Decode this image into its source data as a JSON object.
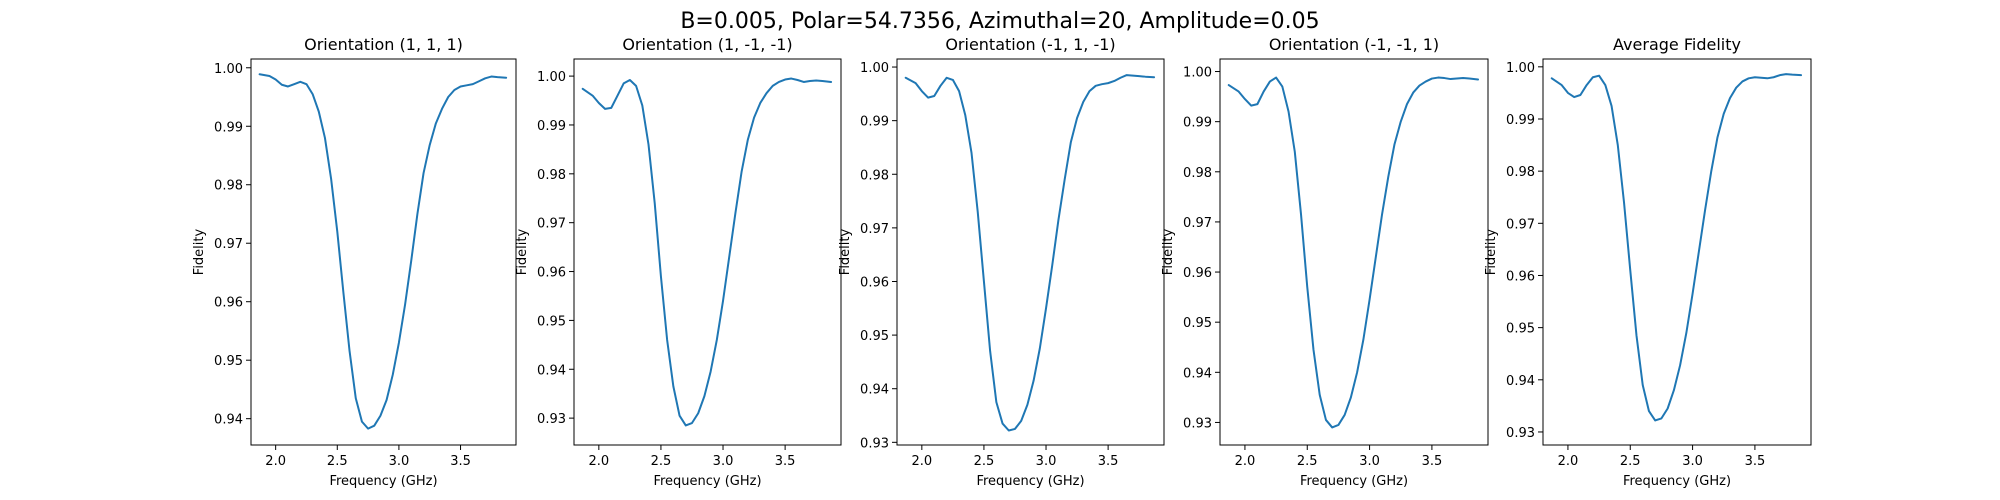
{
  "figure": {
    "suptitle": "B=0.005, Polar=54.7356, Azimuthal=20, Amplitude=0.05"
  },
  "chart_data": [
    {
      "type": "line",
      "title": "Orientation (1, 1, 1)",
      "xlabel": "Frequency (GHz)",
      "ylabel": "Fidelity",
      "xlim": [
        1.8,
        3.95
      ],
      "ylim": [
        0.9355,
        1.0015
      ],
      "xticks": [
        "2.0",
        "2.5",
        "3.0",
        "3.5"
      ],
      "yticks": [
        "0.94",
        "0.95",
        "0.96",
        "0.97",
        "0.98",
        "0.99",
        "1.00"
      ],
      "grid": false,
      "color": "#1f77b4",
      "series": [
        {
          "x": [
            1.87,
            1.95,
            2.0,
            2.05,
            2.1,
            2.15,
            2.2,
            2.25,
            2.3,
            2.35,
            2.4,
            2.45,
            2.5,
            2.55,
            2.6,
            2.65,
            2.7,
            2.75,
            2.8,
            2.85,
            2.9,
            2.95,
            3.0,
            3.05,
            3.1,
            3.15,
            3.2,
            3.25,
            3.3,
            3.35,
            3.4,
            3.45,
            3.5,
            3.55,
            3.6,
            3.65,
            3.7,
            3.75,
            3.8,
            3.87
          ],
          "values": [
            0.9989,
            0.9986,
            0.998,
            0.9971,
            0.9968,
            0.9972,
            0.9976,
            0.9972,
            0.9955,
            0.9925,
            0.988,
            0.981,
            0.972,
            0.9615,
            0.9515,
            0.9435,
            0.9395,
            0.9383,
            0.9388,
            0.9405,
            0.9432,
            0.9475,
            0.953,
            0.9595,
            0.967,
            0.975,
            0.982,
            0.9868,
            0.9905,
            0.993,
            0.995,
            0.9962,
            0.9968,
            0.997,
            0.9972,
            0.9977,
            0.9982,
            0.9985,
            0.9984,
            0.9983
          ]
        }
      ]
    },
    {
      "type": "line",
      "title": "Orientation (1, -1, -1)",
      "xlabel": "Frequency (GHz)",
      "ylabel": "Fidelity",
      "xlim": [
        1.8,
        3.95
      ],
      "ylim": [
        0.9245,
        1.0035
      ],
      "xticks": [
        "2.0",
        "2.5",
        "3.0",
        "3.5"
      ],
      "yticks": [
        "0.93",
        "0.94",
        "0.95",
        "0.96",
        "0.97",
        "0.98",
        "0.99",
        "1.00"
      ],
      "grid": false,
      "color": "#1f77b4",
      "series": [
        {
          "x": [
            1.87,
            1.95,
            2.0,
            2.05,
            2.1,
            2.15,
            2.2,
            2.25,
            2.3,
            2.35,
            2.4,
            2.45,
            2.5,
            2.55,
            2.6,
            2.65,
            2.7,
            2.75,
            2.8,
            2.85,
            2.9,
            2.95,
            3.0,
            3.05,
            3.1,
            3.15,
            3.2,
            3.25,
            3.3,
            3.35,
            3.4,
            3.45,
            3.5,
            3.55,
            3.6,
            3.65,
            3.7,
            3.75,
            3.8,
            3.87
          ],
          "values": [
            0.9974,
            0.996,
            0.9945,
            0.9933,
            0.9935,
            0.996,
            0.9985,
            0.9992,
            0.998,
            0.994,
            0.986,
            0.974,
            0.959,
            0.946,
            0.9365,
            0.9305,
            0.9285,
            0.929,
            0.931,
            0.9345,
            0.9395,
            0.946,
            0.954,
            0.963,
            0.972,
            0.9805,
            0.987,
            0.9915,
            0.9945,
            0.9965,
            0.998,
            0.9988,
            0.9993,
            0.9995,
            0.9992,
            0.9988,
            0.999,
            0.9991,
            0.999,
            0.9988
          ]
        }
      ]
    },
    {
      "type": "line",
      "title": "Orientation (-1, 1, -1)",
      "xlabel": "Frequency (GHz)",
      "ylabel": "Fidelity",
      "xlim": [
        1.8,
        3.95
      ],
      "ylim": [
        0.9295,
        1.0015
      ],
      "xticks": [
        "2.0",
        "2.5",
        "3.0",
        "3.5"
      ],
      "yticks": [
        "0.93",
        "0.94",
        "0.95",
        "0.96",
        "0.97",
        "0.98",
        "0.99",
        "1.00"
      ],
      "grid": false,
      "color": "#1f77b4",
      "series": [
        {
          "x": [
            1.87,
            1.95,
            2.0,
            2.05,
            2.1,
            2.15,
            2.2,
            2.25,
            2.3,
            2.35,
            2.4,
            2.45,
            2.5,
            2.55,
            2.6,
            2.65,
            2.7,
            2.75,
            2.8,
            2.85,
            2.9,
            2.95,
            3.0,
            3.05,
            3.1,
            3.15,
            3.2,
            3.25,
            3.3,
            3.35,
            3.4,
            3.45,
            3.5,
            3.55,
            3.6,
            3.65,
            3.7,
            3.75,
            3.8,
            3.87
          ],
          "values": [
            0.998,
            0.997,
            0.9955,
            0.9943,
            0.9946,
            0.9965,
            0.998,
            0.9976,
            0.9955,
            0.991,
            0.984,
            0.973,
            0.96,
            0.947,
            0.9375,
            0.9335,
            0.9322,
            0.9325,
            0.934,
            0.937,
            0.9415,
            0.9475,
            0.955,
            0.963,
            0.9715,
            0.979,
            0.986,
            0.9905,
            0.9935,
            0.9955,
            0.9965,
            0.9968,
            0.997,
            0.9974,
            0.998,
            0.9985,
            0.9984,
            0.9983,
            0.9982,
            0.9981
          ]
        }
      ]
    },
    {
      "type": "line",
      "title": "Orientation (-1, -1, 1)",
      "xlabel": "Frequency (GHz)",
      "ylabel": "Fidelity",
      "xlim": [
        1.8,
        3.95
      ],
      "ylim": [
        0.9255,
        1.0025
      ],
      "xticks": [
        "2.0",
        "2.5",
        "3.0",
        "3.5"
      ],
      "yticks": [
        "0.93",
        "0.94",
        "0.95",
        "0.96",
        "0.97",
        "0.98",
        "0.99",
        "1.00"
      ],
      "grid": false,
      "color": "#1f77b4",
      "series": [
        {
          "x": [
            1.87,
            1.95,
            2.0,
            2.05,
            2.1,
            2.15,
            2.2,
            2.25,
            2.3,
            2.35,
            2.4,
            2.45,
            2.5,
            2.55,
            2.6,
            2.65,
            2.7,
            2.75,
            2.8,
            2.85,
            2.9,
            2.95,
            3.0,
            3.05,
            3.1,
            3.15,
            3.2,
            3.25,
            3.3,
            3.35,
            3.4,
            3.45,
            3.5,
            3.55,
            3.6,
            3.65,
            3.7,
            3.75,
            3.8,
            3.87
          ],
          "values": [
            0.9973,
            0.996,
            0.9945,
            0.9932,
            0.9935,
            0.996,
            0.998,
            0.9988,
            0.997,
            0.992,
            0.984,
            0.9715,
            0.957,
            0.9445,
            0.9355,
            0.9305,
            0.929,
            0.9295,
            0.9315,
            0.935,
            0.94,
            0.9465,
            0.9545,
            0.963,
            0.9715,
            0.979,
            0.9855,
            0.99,
            0.9935,
            0.9958,
            0.9972,
            0.998,
            0.9986,
            0.9988,
            0.9987,
            0.9985,
            0.9986,
            0.9987,
            0.9986,
            0.9984
          ]
        }
      ]
    },
    {
      "type": "line",
      "title": "Average Fidelity",
      "xlabel": "Frequency (GHz)",
      "ylabel": "Fidelity",
      "xlim": [
        1.8,
        3.95
      ],
      "ylim": [
        0.9275,
        1.0015
      ],
      "xticks": [
        "2.0",
        "2.5",
        "3.0",
        "3.5"
      ],
      "yticks": [
        "0.93",
        "0.94",
        "0.95",
        "0.96",
        "0.97",
        "0.98",
        "0.99",
        "1.00"
      ],
      "grid": false,
      "color": "#1f77b4",
      "series": [
        {
          "x": [
            1.87,
            1.95,
            2.0,
            2.05,
            2.1,
            2.15,
            2.2,
            2.25,
            2.3,
            2.35,
            2.4,
            2.45,
            2.5,
            2.55,
            2.6,
            2.65,
            2.7,
            2.75,
            2.8,
            2.85,
            2.9,
            2.95,
            3.0,
            3.05,
            3.1,
            3.15,
            3.2,
            3.25,
            3.3,
            3.35,
            3.4,
            3.45,
            3.5,
            3.55,
            3.6,
            3.65,
            3.7,
            3.75,
            3.8,
            3.87
          ],
          "values": [
            0.9978,
            0.9965,
            0.995,
            0.9942,
            0.9946,
            0.9965,
            0.998,
            0.9983,
            0.9965,
            0.9925,
            0.985,
            0.974,
            0.961,
            0.9485,
            0.939,
            0.934,
            0.9322,
            0.9326,
            0.9345,
            0.938,
            0.9428,
            0.949,
            0.9565,
            0.9645,
            0.9725,
            0.98,
            0.9865,
            0.991,
            0.994,
            0.996,
            0.9972,
            0.9978,
            0.998,
            0.9979,
            0.9978,
            0.998,
            0.9984,
            0.9986,
            0.9985,
            0.9984
          ]
        }
      ]
    }
  ]
}
